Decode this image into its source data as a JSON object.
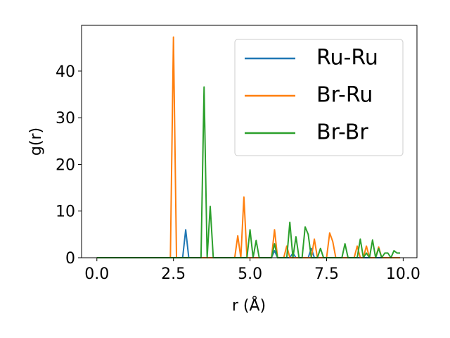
{
  "chart_data": {
    "type": "line",
    "xlabel": "r (Å)",
    "ylabel": "g(r)",
    "xlim": [
      -0.5,
      10.45
    ],
    "ylim": [
      0,
      49.8
    ],
    "xticks": [
      {
        "value": 0,
        "label": "0.0"
      },
      2.5,
      {
        "value": 5,
        "label": "5.0"
      },
      7.5,
      {
        "value": 10,
        "label": "10.0"
      }
    ],
    "yticks": [
      0,
      10,
      20,
      30,
      40
    ],
    "legend": "upper right",
    "x": [
      0,
      0.1,
      0.2,
      0.3,
      0.4,
      0.5,
      0.6,
      0.7,
      0.8,
      0.9,
      1,
      1.1,
      1.2,
      1.3,
      1.4,
      1.5,
      1.6,
      1.7,
      1.8,
      1.9,
      2,
      2.1,
      2.2,
      2.3,
      2.4,
      2.5,
      2.6,
      2.7,
      2.8,
      2.9,
      3,
      3.1,
      3.2,
      3.3,
      3.4,
      3.5,
      3.6,
      3.7,
      3.8,
      3.9,
      4,
      4.1,
      4.2,
      4.3,
      4.4,
      4.5,
      4.6,
      4.7,
      4.8,
      4.9,
      5,
      5.1,
      5.2,
      5.3,
      5.4,
      5.5,
      5.6,
      5.7,
      5.8,
      5.9,
      6,
      6.1,
      6.2,
      6.3,
      6.4,
      6.5,
      6.6,
      6.7,
      6.8,
      6.9,
      7,
      7.1,
      7.2,
      7.3,
      7.4,
      7.5,
      7.6,
      7.7,
      7.8,
      7.9,
      8,
      8.1,
      8.2,
      8.3,
      8.4,
      8.5,
      8.6,
      8.7,
      8.8,
      8.9,
      9,
      9.1,
      9.2,
      9.3,
      9.4,
      9.5,
      9.6,
      9.7,
      9.8,
      9.9
    ],
    "series": [
      {
        "name": "Ru-Ru",
        "color": "#1f77b4",
        "values": [
          0,
          0,
          0,
          0,
          0,
          0,
          0,
          0,
          0,
          0,
          0,
          0,
          0,
          0,
          0,
          0,
          0,
          0,
          0,
          0,
          0,
          0,
          0,
          0,
          0,
          0,
          0,
          0,
          0,
          6,
          0,
          0,
          0,
          0,
          0,
          0,
          0,
          0,
          0,
          0,
          0,
          0,
          0,
          0,
          0,
          0,
          0,
          0,
          0,
          0,
          0,
          0,
          0,
          0,
          0,
          0,
          0,
          0,
          1.5,
          0,
          0,
          0,
          0,
          0,
          1,
          0,
          0,
          0,
          0,
          0,
          2,
          0,
          0,
          0,
          0,
          0,
          0,
          0,
          0,
          0,
          0,
          0,
          0,
          0,
          0,
          0,
          0,
          0,
          0,
          0,
          0,
          0,
          0,
          0,
          0,
          0,
          0,
          0,
          0,
          0
        ]
      },
      {
        "name": "Br-Ru",
        "color": "#ff7f0e",
        "values": [
          0,
          0,
          0,
          0,
          0,
          0,
          0,
          0,
          0,
          0,
          0,
          0,
          0,
          0,
          0,
          0,
          0,
          0,
          0,
          0,
          0,
          0,
          0,
          0,
          0,
          47.3,
          0,
          0,
          0,
          0,
          0,
          0,
          0,
          0,
          0,
          0,
          0,
          0,
          0,
          0,
          0,
          0,
          0,
          0,
          0,
          0,
          4.7,
          0,
          13,
          0,
          0,
          0,
          0,
          0,
          0,
          0,
          0,
          0,
          6,
          0,
          0,
          0,
          2.5,
          0,
          0,
          0,
          0,
          0,
          0,
          0,
          0,
          4,
          0,
          0,
          0,
          0,
          5.3,
          3.5,
          0,
          0,
          0,
          0,
          0,
          0,
          0,
          2.5,
          0,
          0,
          2.5,
          0,
          0,
          0,
          2.3,
          0,
          0,
          0,
          0,
          0,
          0,
          0
        ]
      },
      {
        "name": "Br-Br",
        "color": "#2ca02c",
        "values": [
          0,
          0,
          0,
          0,
          0,
          0,
          0,
          0,
          0,
          0,
          0,
          0,
          0,
          0,
          0,
          0,
          0,
          0,
          0,
          0,
          0,
          0,
          0,
          0,
          0,
          0,
          0,
          0,
          0,
          0,
          0,
          0,
          0,
          0,
          0,
          36.6,
          0,
          11,
          0,
          0,
          0,
          0,
          0,
          0,
          0,
          0,
          0,
          0,
          0,
          0,
          6,
          0,
          3.7,
          0,
          0,
          0,
          0,
          0,
          3,
          0,
          0,
          0,
          0,
          7.6,
          0,
          4.5,
          0,
          0,
          6.6,
          5,
          0,
          0,
          0,
          2,
          0,
          0,
          0,
          0,
          0,
          0,
          0,
          3,
          0,
          0,
          0,
          0,
          4,
          0,
          1,
          0,
          3.8,
          0,
          2,
          0,
          1,
          1,
          0,
          1.5,
          1,
          1
        ]
      }
    ]
  }
}
